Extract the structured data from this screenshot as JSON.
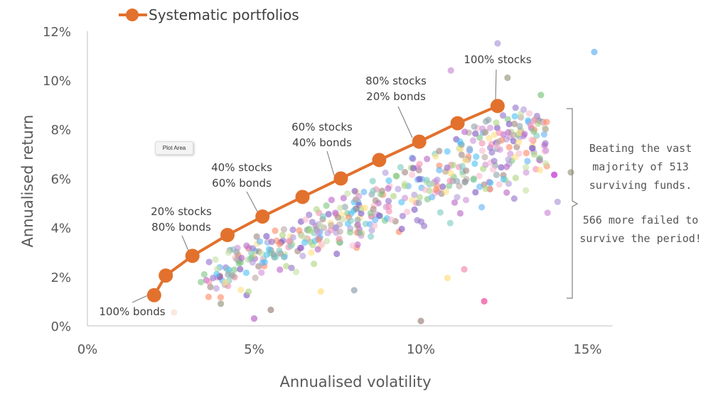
{
  "chart_data": {
    "type": "scatter",
    "xlabel": "Annualised volatility",
    "ylabel": "Annualised return",
    "xlim": [
      0,
      16
    ],
    "ylim": [
      0,
      12
    ],
    "x_ticks": [
      "0%",
      "5%",
      "10%",
      "15%"
    ],
    "x_tick_values": [
      0,
      5,
      10,
      15
    ],
    "y_ticks": [
      "0%",
      "2%",
      "4%",
      "6%",
      "8%",
      "10%",
      "12%"
    ],
    "y_tick_values": [
      0,
      2,
      4,
      6,
      8,
      10,
      12
    ],
    "grid": false,
    "legend_position": "top-left",
    "series": [
      {
        "name": "Systematic portfolios",
        "type": "line",
        "color": "#E2712D",
        "x": [
          2.0,
          2.35,
          3.15,
          4.2,
          5.25,
          6.45,
          7.6,
          8.75,
          9.95,
          11.1,
          12.3
        ],
        "y": [
          1.25,
          2.05,
          2.85,
          3.7,
          4.45,
          5.25,
          6.0,
          6.75,
          7.5,
          8.25,
          8.95
        ]
      }
    ],
    "fund_points": {
      "count": 513,
      "palette": [
        "#7e57c2",
        "#9575cd",
        "#64b5f6",
        "#81c784",
        "#aed581",
        "#f8bbd0",
        "#f48fb1",
        "#ffe082",
        "#bcaaa4",
        "#ba68c8",
        "#80cbc4",
        "#a1887f",
        "#b39ddb",
        "#90a4ae",
        "#ff8a65",
        "#c5e1a5",
        "#ce93d8",
        "#4fc3f7"
      ],
      "named_points": [
        {
          "x": 2.6,
          "y": 0.55,
          "color": "#f8e0d0"
        },
        {
          "x": 4.0,
          "y": 0.9,
          "color": "#9e9d84"
        },
        {
          "x": 5.0,
          "y": 0.3,
          "color": "#ba68c8"
        },
        {
          "x": 5.5,
          "y": 0.65,
          "color": "#a1887f"
        },
        {
          "x": 10.0,
          "y": 0.2,
          "color": "#a1887f"
        },
        {
          "x": 11.9,
          "y": 1.0,
          "color": "#ec4899"
        },
        {
          "x": 12.3,
          "y": 11.5,
          "color": "#b39ddb"
        },
        {
          "x": 15.2,
          "y": 11.15,
          "color": "#64b5f6"
        },
        {
          "x": 12.6,
          "y": 10.1,
          "color": "#9e9d84"
        },
        {
          "x": 10.9,
          "y": 10.4,
          "color": "#ce93d8"
        },
        {
          "x": 13.6,
          "y": 9.4,
          "color": "#81c784"
        },
        {
          "x": 14.5,
          "y": 6.25,
          "color": "#9e9d84"
        },
        {
          "x": 14.0,
          "y": 6.15,
          "color": "#c026d3"
        },
        {
          "x": 14.1,
          "y": 5.05,
          "color": "#b39ddb"
        },
        {
          "x": 13.8,
          "y": 4.6,
          "color": "#ce93d8"
        },
        {
          "x": 11.3,
          "y": 2.3,
          "color": "#f48fb1"
        },
        {
          "x": 10.8,
          "y": 1.95,
          "color": "#ffe082"
        },
        {
          "x": 8.0,
          "y": 1.45,
          "color": "#90a4ae"
        },
        {
          "x": 7.0,
          "y": 1.4,
          "color": "#ffe082"
        }
      ]
    },
    "annotations": [
      {
        "lines": [
          "100% bonds"
        ],
        "point_index": 0
      },
      {
        "lines": [
          "20% stocks",
          "80% bonds"
        ],
        "point_index": 2
      },
      {
        "lines": [
          "40% stocks",
          "60% bonds"
        ],
        "point_index": 4
      },
      {
        "lines": [
          "60% stocks",
          "40% bonds"
        ],
        "point_index": 6
      },
      {
        "lines": [
          "80% stocks",
          "20% bonds"
        ],
        "point_index": 8
      },
      {
        "lines": [
          "100% stocks"
        ],
        "point_index": 10
      }
    ],
    "side_note": {
      "top": [
        "Beating the vast",
        "majority of 513",
        "surviving funds."
      ],
      "bottom": [
        "566 more failed to",
        "survive the period!"
      ]
    },
    "tooltip": "Plot Area"
  }
}
